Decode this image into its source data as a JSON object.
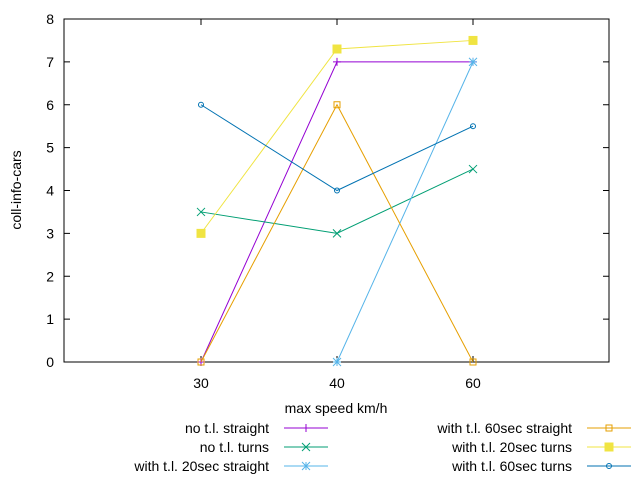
{
  "chart_data": {
    "type": "line",
    "title": "",
    "xlabel": "max speed km/h",
    "ylabel": "coll-info-cars",
    "categories": [
      "30",
      "40",
      "60"
    ],
    "ylim": [
      0,
      8
    ],
    "yticks": [
      0,
      1,
      2,
      3,
      4,
      5,
      6,
      7,
      8
    ],
    "grid": false,
    "legend_placement": "bottom",
    "series": [
      {
        "name": "no t.l. straight",
        "values": [
          0,
          7,
          7
        ],
        "color": "#9400d3",
        "marker": "plus"
      },
      {
        "name": "no t.l. turns",
        "values": [
          3.5,
          3,
          4.5
        ],
        "color": "#009e73",
        "marker": "cross"
      },
      {
        "name": "with t.l. 20sec straight",
        "values": [
          null,
          0,
          7
        ],
        "color": "#56b4e9",
        "marker": "star"
      },
      {
        "name": "with t.l. 60sec straight",
        "values": [
          0,
          6,
          0
        ],
        "color": "#e69f00",
        "marker": "square-open"
      },
      {
        "name": "with t.l. 20sec turns",
        "values": [
          3,
          7.3,
          7.5
        ],
        "color": "#f0e442",
        "marker": "square-filled"
      },
      {
        "name": "with t.l. 60sec turns",
        "values": [
          6,
          4,
          5.5
        ],
        "color": "#0072b2",
        "marker": "circle-open"
      }
    ]
  }
}
